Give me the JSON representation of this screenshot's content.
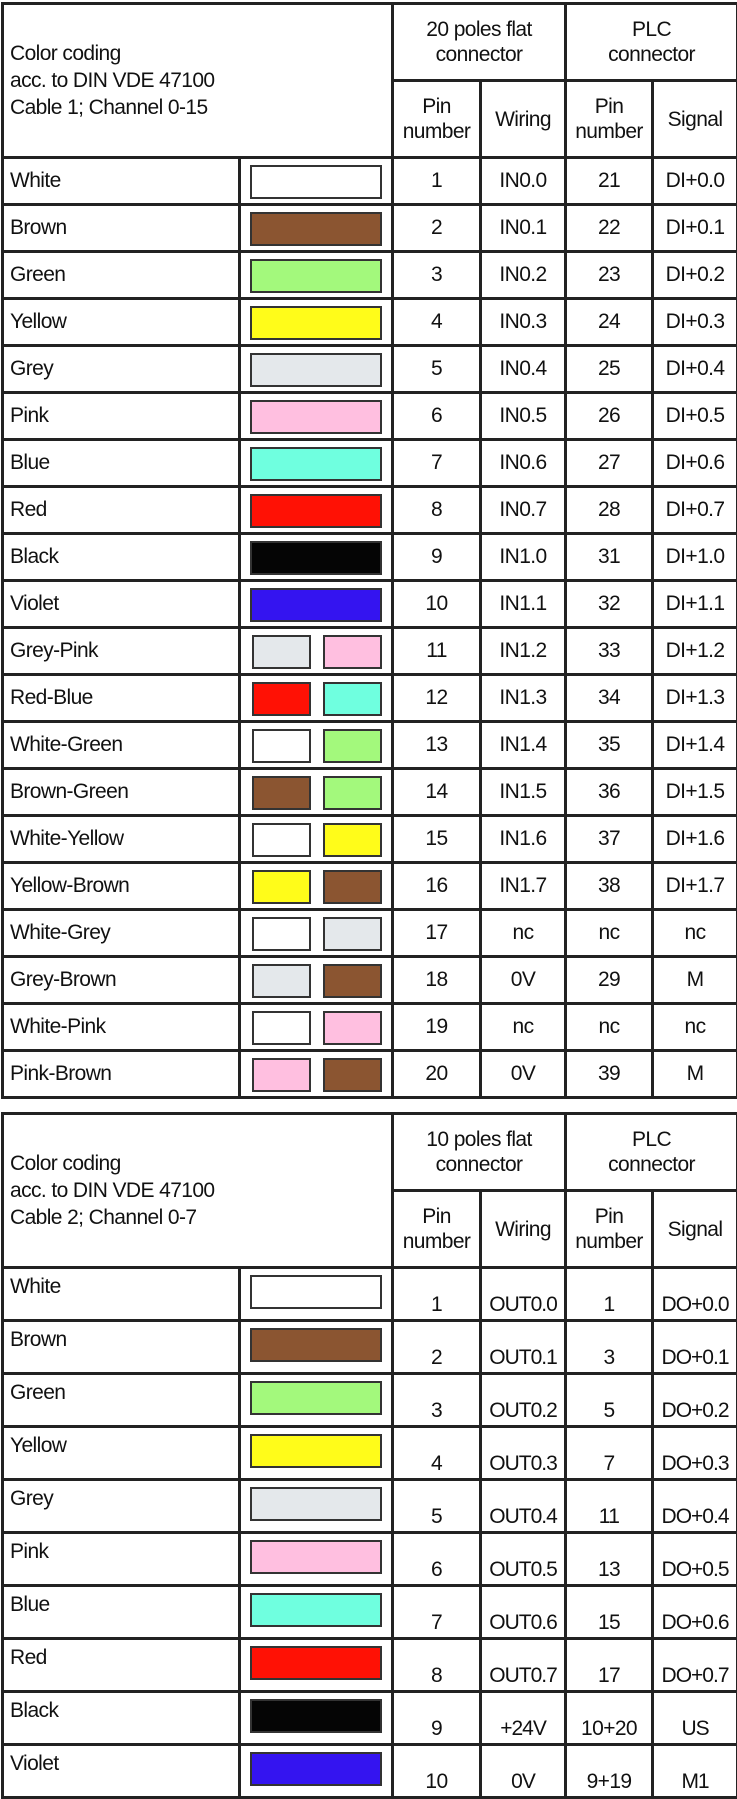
{
  "colors": {
    "White": "#ffffff",
    "Brown": "#8b5531",
    "Green": "#a3f97c",
    "Yellow": "#fffc1a",
    "Grey": "#e4e8eb",
    "Pink": "#ffbfe0",
    "Blue": "#6fffdf",
    "Red": "#ff1105",
    "Black": "#050505",
    "Violet": "#3414f0"
  },
  "tables": [
    {
      "title_lines": [
        "Color coding",
        "acc. to DIN VDE 47100",
        "Cable 1; Channel 0-15"
      ],
      "group1": "20 poles flat connector",
      "group2": "PLC connector",
      "col_pin": "Pin number",
      "col_wiring": "Wiring",
      "col_pin2": "Pin number",
      "col_signal": "Signal",
      "rows": [
        {
          "label": "White",
          "swatches": [
            "White"
          ],
          "pin": "1",
          "wiring": "IN0.0",
          "plc_pin": "21",
          "signal": "DI+0.0"
        },
        {
          "label": "Brown",
          "swatches": [
            "Brown"
          ],
          "pin": "2",
          "wiring": "IN0.1",
          "plc_pin": "22",
          "signal": "DI+0.1"
        },
        {
          "label": "Green",
          "swatches": [
            "Green"
          ],
          "pin": "3",
          "wiring": "IN0.2",
          "plc_pin": "23",
          "signal": "DI+0.2"
        },
        {
          "label": "Yellow",
          "swatches": [
            "Yellow"
          ],
          "pin": "4",
          "wiring": "IN0.3",
          "plc_pin": "24",
          "signal": "DI+0.3"
        },
        {
          "label": "Grey",
          "swatches": [
            "Grey"
          ],
          "pin": "5",
          "wiring": "IN0.4",
          "plc_pin": "25",
          "signal": "DI+0.4"
        },
        {
          "label": "Pink",
          "swatches": [
            "Pink"
          ],
          "pin": "6",
          "wiring": "IN0.5",
          "plc_pin": "26",
          "signal": "DI+0.5"
        },
        {
          "label": "Blue",
          "swatches": [
            "Blue"
          ],
          "pin": "7",
          "wiring": "IN0.6",
          "plc_pin": "27",
          "signal": "DI+0.6"
        },
        {
          "label": "Red",
          "swatches": [
            "Red"
          ],
          "pin": "8",
          "wiring": "IN0.7",
          "plc_pin": "28",
          "signal": "DI+0.7"
        },
        {
          "label": "Black",
          "swatches": [
            "Black"
          ],
          "pin": "9",
          "wiring": "IN1.0",
          "plc_pin": "31",
          "signal": "DI+1.0"
        },
        {
          "label": "Violet",
          "swatches": [
            "Violet"
          ],
          "pin": "10",
          "wiring": "IN1.1",
          "plc_pin": "32",
          "signal": "DI+1.1"
        },
        {
          "label": "Grey-Pink",
          "swatches": [
            "Grey",
            "Pink"
          ],
          "pin": "11",
          "wiring": "IN1.2",
          "plc_pin": "33",
          "signal": "DI+1.2"
        },
        {
          "label": "Red-Blue",
          "swatches": [
            "Red",
            "Blue"
          ],
          "pin": "12",
          "wiring": "IN1.3",
          "plc_pin": "34",
          "signal": "DI+1.3"
        },
        {
          "label": "White-Green",
          "swatches": [
            "White",
            "Green"
          ],
          "pin": "13",
          "wiring": "IN1.4",
          "plc_pin": "35",
          "signal": "DI+1.4"
        },
        {
          "label": "Brown-Green",
          "swatches": [
            "Brown",
            "Green"
          ],
          "pin": "14",
          "wiring": "IN1.5",
          "plc_pin": "36",
          "signal": "DI+1.5"
        },
        {
          "label": "White-Yellow",
          "swatches": [
            "White",
            "Yellow"
          ],
          "pin": "15",
          "wiring": "IN1.6",
          "plc_pin": "37",
          "signal": "DI+1.6"
        },
        {
          "label": "Yellow-Brown",
          "swatches": [
            "Yellow",
            "Brown"
          ],
          "pin": "16",
          "wiring": "IN1.7",
          "plc_pin": "38",
          "signal": "DI+1.7"
        },
        {
          "label": "White-Grey",
          "swatches": [
            "White",
            "Grey"
          ],
          "pin": "17",
          "wiring": "nc",
          "plc_pin": "nc",
          "signal": "nc"
        },
        {
          "label": "Grey-Brown",
          "swatches": [
            "Grey",
            "Brown"
          ],
          "pin": "18",
          "wiring": "0V",
          "plc_pin": "29",
          "signal": "M"
        },
        {
          "label": "White-Pink",
          "swatches": [
            "White",
            "Pink"
          ],
          "pin": "19",
          "wiring": "nc",
          "plc_pin": "nc",
          "signal": "nc"
        },
        {
          "label": "Pink-Brown",
          "swatches": [
            "Pink",
            "Brown"
          ],
          "pin": "20",
          "wiring": "0V",
          "plc_pin": "39",
          "signal": "M"
        }
      ]
    },
    {
      "title_lines": [
        "Color coding",
        "acc. to DIN VDE 47100",
        "Cable 2; Channel 0-7"
      ],
      "group1": "10 poles flat connector",
      "group2": "PLC connector",
      "col_pin": "Pin number",
      "col_wiring": "Wiring",
      "col_pin2": "Pin number",
      "col_signal": "Signal",
      "rows": [
        {
          "label": "White",
          "swatches": [
            "White"
          ],
          "pin": "1",
          "wiring": "OUT0.0",
          "plc_pin": "1",
          "signal": "DO+0.0"
        },
        {
          "label": "Brown",
          "swatches": [
            "Brown"
          ],
          "pin": "2",
          "wiring": "OUT0.1",
          "plc_pin": "3",
          "signal": "DO+0.1"
        },
        {
          "label": "Green",
          "swatches": [
            "Green"
          ],
          "pin": "3",
          "wiring": "OUT0.2",
          "plc_pin": "5",
          "signal": "DO+0.2"
        },
        {
          "label": "Yellow",
          "swatches": [
            "Yellow"
          ],
          "pin": "4",
          "wiring": "OUT0.3",
          "plc_pin": "7",
          "signal": "DO+0.3"
        },
        {
          "label": "Grey",
          "swatches": [
            "Grey"
          ],
          "pin": "5",
          "wiring": "OUT0.4",
          "plc_pin": "11",
          "signal": "DO+0.4"
        },
        {
          "label": "Pink",
          "swatches": [
            "Pink"
          ],
          "pin": "6",
          "wiring": "OUT0.5",
          "plc_pin": "13",
          "signal": "DO+0.5"
        },
        {
          "label": "Blue",
          "swatches": [
            "Blue"
          ],
          "pin": "7",
          "wiring": "OUT0.6",
          "plc_pin": "15",
          "signal": "DO+0.6"
        },
        {
          "label": "Red",
          "swatches": [
            "Red"
          ],
          "pin": "8",
          "wiring": "OUT0.7",
          "plc_pin": "17",
          "signal": "DO+0.7"
        },
        {
          "label": "Black",
          "swatches": [
            "Black"
          ],
          "pin": "9",
          "wiring": "+24V",
          "plc_pin": "10+20",
          "signal": "US"
        },
        {
          "label": "Violet",
          "swatches": [
            "Violet"
          ],
          "pin": "10",
          "wiring": "0V",
          "plc_pin": "9+19",
          "signal": "M1"
        }
      ]
    }
  ]
}
